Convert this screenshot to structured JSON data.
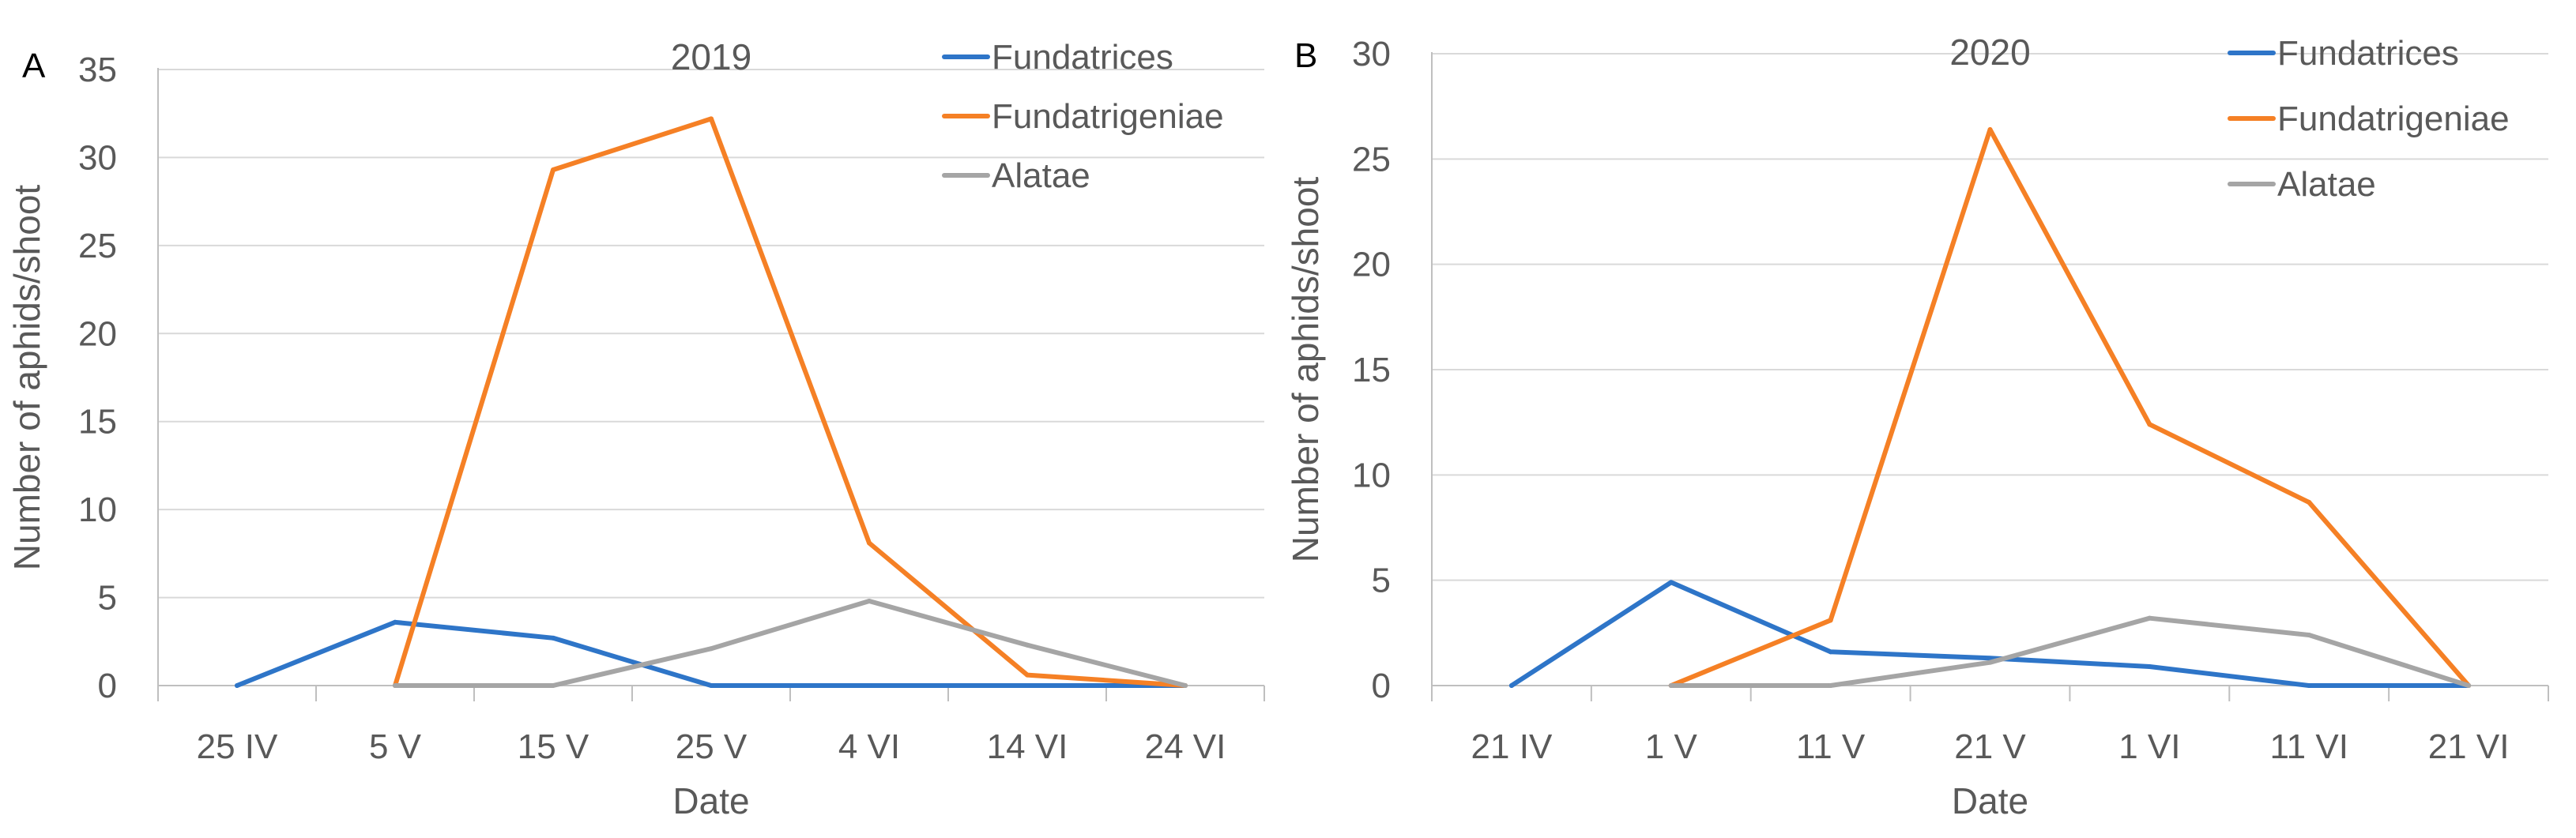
{
  "chart_data": [
    {
      "type": "line",
      "panel": "A",
      "title": "2019",
      "xlabel": "Date",
      "ylabel": "Number of aphids/shoot",
      "ylim": [
        0,
        35
      ],
      "yticks": [
        0,
        5,
        10,
        15,
        20,
        25,
        30,
        35
      ],
      "grid": true,
      "legend_position": "top-right",
      "categories": [
        "25 IV",
        "5 V",
        "15 V",
        "25 V",
        "4 VI",
        "14 VI",
        "24 VI"
      ],
      "series": [
        {
          "name": "Fundatrices",
          "color": "#2E75C8",
          "values": [
            0,
            3.6,
            2.7,
            0,
            0,
            0,
            0
          ]
        },
        {
          "name": "Fundatrigeniae",
          "color": "#F58025",
          "values": [
            null,
            0,
            29.3,
            32.2,
            8.1,
            0.6,
            0
          ]
        },
        {
          "name": "Alatae",
          "color": "#A5A5A5",
          "values": [
            null,
            0,
            0,
            2.1,
            4.8,
            2.3,
            0
          ]
        }
      ]
    },
    {
      "type": "line",
      "panel": "B",
      "title": "2020",
      "xlabel": "Date",
      "ylabel": "Number of aphids/shoot",
      "ylim": [
        0,
        30
      ],
      "yticks": [
        0,
        5,
        10,
        15,
        20,
        25,
        30
      ],
      "grid": true,
      "legend_position": "top-right",
      "categories": [
        "21 IV",
        "1 V",
        "11 V",
        "21 V",
        "1 VI",
        "11 VI",
        "21 VI"
      ],
      "series": [
        {
          "name": "Fundatrices",
          "color": "#2E75C8",
          "values": [
            0,
            4.9,
            1.6,
            1.3,
            0.9,
            0,
            0
          ]
        },
        {
          "name": "Fundatrigeniae",
          "color": "#F58025",
          "values": [
            null,
            0,
            3.1,
            26.4,
            12.4,
            8.7,
            0
          ]
        },
        {
          "name": "Alatae",
          "color": "#A5A5A5",
          "values": [
            null,
            0,
            0,
            1.1,
            3.2,
            2.4,
            0
          ]
        }
      ]
    }
  ]
}
